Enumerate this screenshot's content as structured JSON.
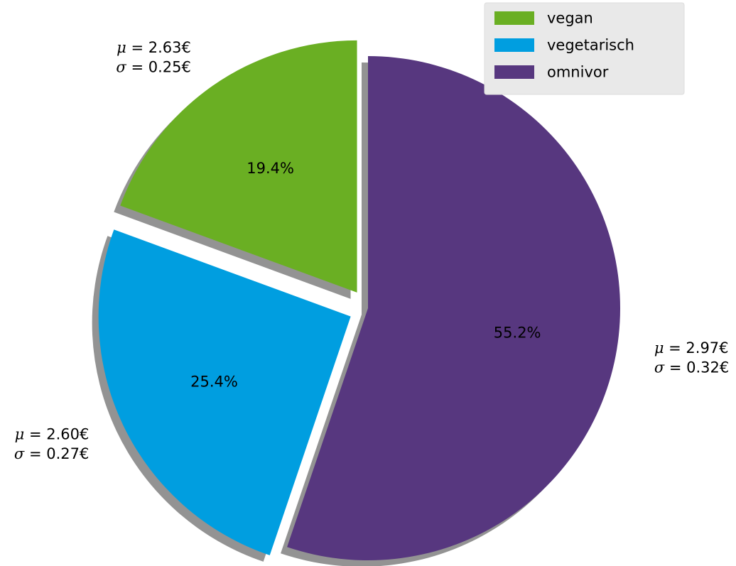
{
  "chart_data": {
    "type": "pie",
    "slices": [
      {
        "name": "vegan",
        "percent": 19.4,
        "percent_label": "19.4%",
        "mean_label": "2.63€",
        "std_label": "0.25€",
        "color": "#6aaf23",
        "exploded": true
      },
      {
        "name": "vegetarisch",
        "percent": 25.4,
        "percent_label": "25.4%",
        "mean_label": "2.60€",
        "std_label": "0.27€",
        "color": "#009ee0",
        "exploded": true
      },
      {
        "name": "omnivor",
        "percent": 55.2,
        "percent_label": "55.2%",
        "mean_label": "2.97€",
        "std_label": "0.32€",
        "color": "#57377f",
        "exploded": false
      }
    ],
    "start_angle_deg": 90,
    "direction": "counterclockwise",
    "shadow": true,
    "shadow_color": "#808080",
    "legend": {
      "placement": "top-right",
      "background": "#e9e9e9",
      "entries": [
        "vegan",
        "vegetarisch",
        "omnivor"
      ]
    },
    "mu_symbol": "μ",
    "sigma_symbol": "σ",
    "equals": " = "
  }
}
